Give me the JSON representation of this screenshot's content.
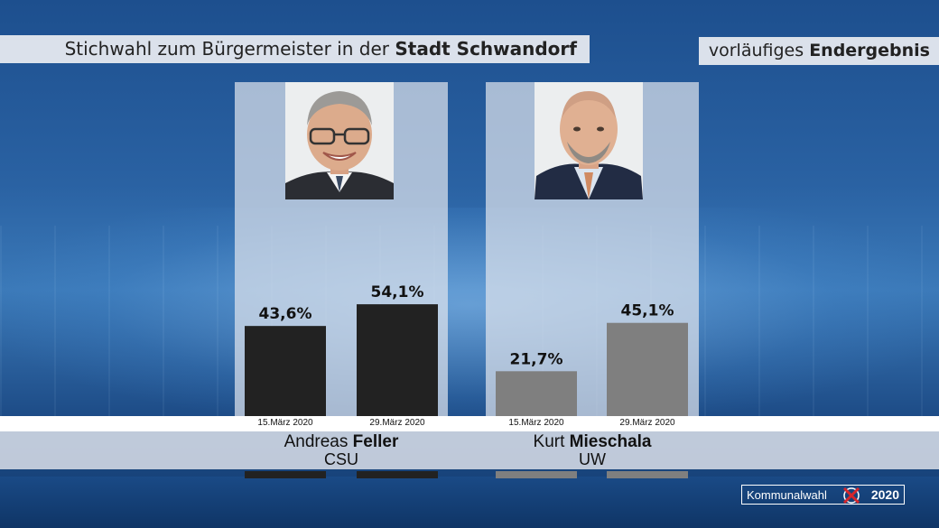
{
  "header": {
    "title_prefix": "Stichwahl zum Bürgermeister in der",
    "title_bold": "Stadt Schwandorf",
    "status_prefix": "vorläufiges",
    "status_bold": "Endergebnis"
  },
  "chart_data": {
    "type": "bar",
    "title": "Stichwahl zum Bürgermeister in der Stadt Schwandorf",
    "categories": [
      "15.März 2020",
      "29.März 2020"
    ],
    "ylim": [
      0,
      100
    ],
    "series": [
      {
        "name": "Andreas Feller",
        "first_name": "Andreas",
        "last_name": "Feller",
        "party": "CSU",
        "color": "#222222",
        "values": [
          43.6,
          54.1
        ],
        "labels": [
          "43,6%",
          "54,1%"
        ]
      },
      {
        "name": "Kurt Mieschala",
        "first_name": "Kurt",
        "last_name": "Mieschala",
        "party": "UW",
        "color": "#7f7f7f",
        "values": [
          21.7,
          45.1
        ],
        "labels": [
          "21,7%",
          "45,1%"
        ]
      }
    ]
  },
  "logo": {
    "word": "Kommunalwahl",
    "year": "2020",
    "accent": "#d6262b"
  }
}
